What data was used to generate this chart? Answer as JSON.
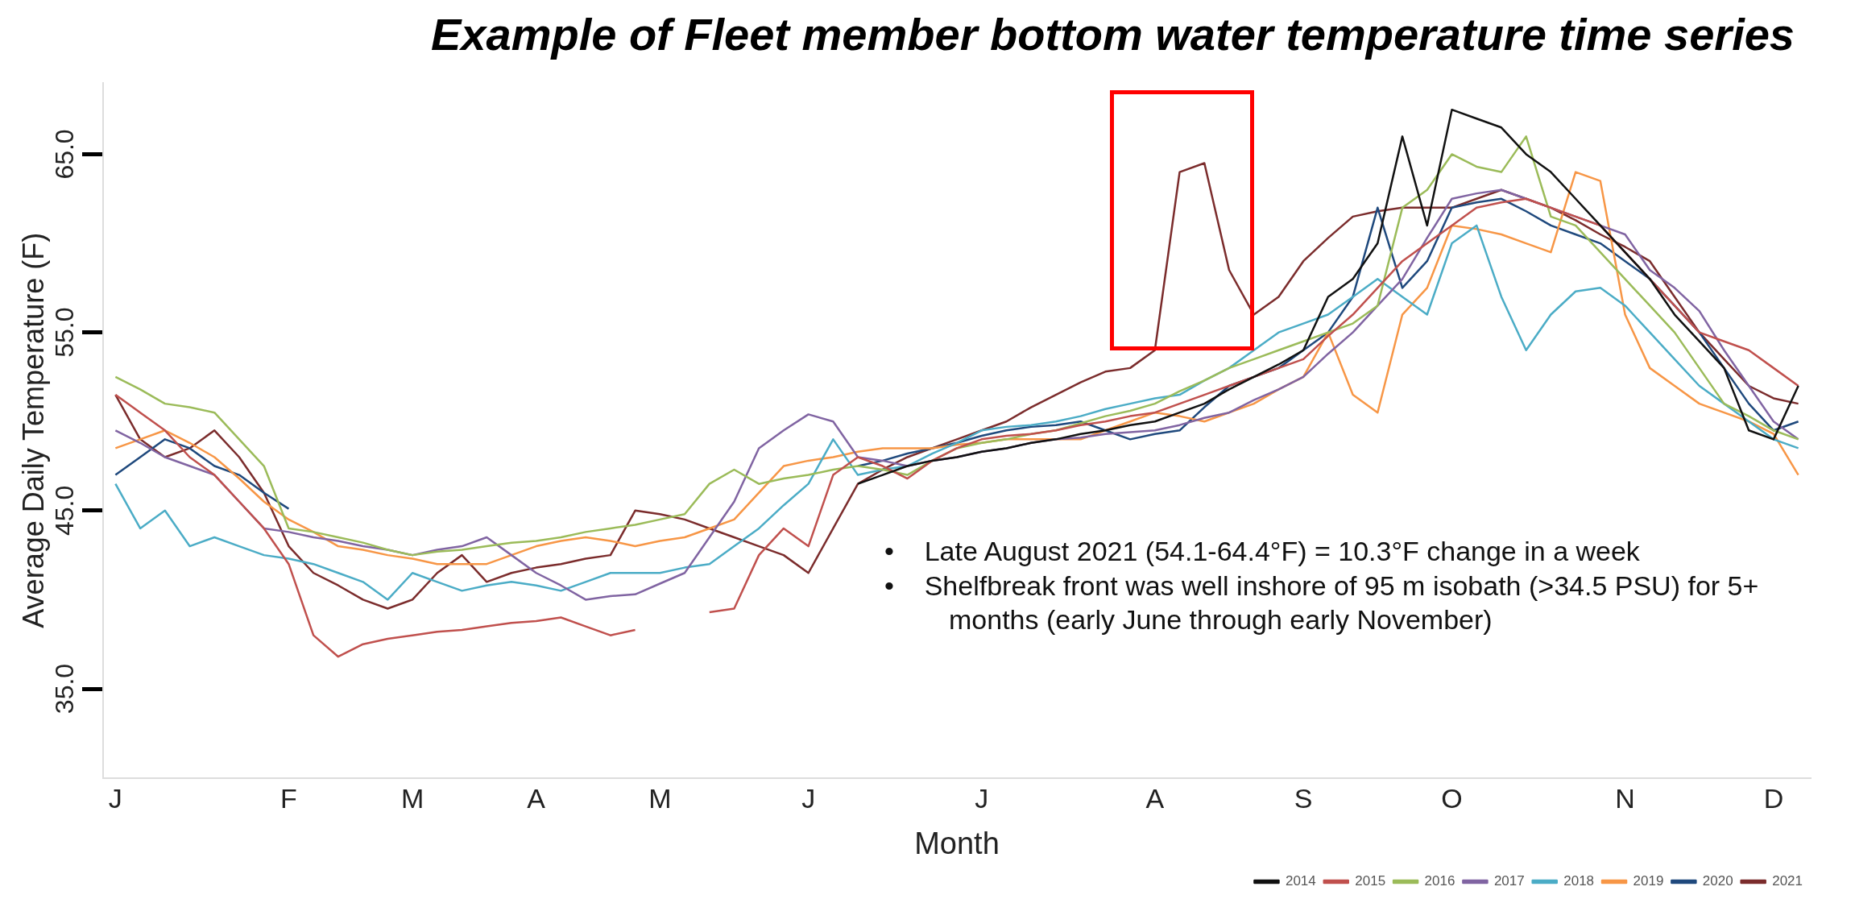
{
  "chart_data": {
    "type": "line",
    "title": "Example of Fleet member bottom water temperature time series",
    "xlabel": "Month",
    "ylabel": "Average Daily Temperature (F)",
    "categories": [
      "J",
      null,
      null,
      null,
      null,
      null,
      null,
      "F",
      null,
      null,
      null,
      null,
      "M",
      null,
      null,
      null,
      null,
      "A",
      null,
      null,
      null,
      null,
      "M",
      null,
      null,
      null,
      null,
      null,
      "J",
      null,
      null,
      null,
      null,
      null,
      null,
      "J",
      null,
      null,
      null,
      null,
      null,
      null,
      "A",
      null,
      null,
      null,
      null,
      null,
      "S",
      null,
      null,
      null,
      null,
      null,
      "O",
      null,
      null,
      null,
      null,
      null,
      null,
      "N",
      null,
      null,
      null,
      null,
      null,
      "D",
      null
    ],
    "ylim": [
      30,
      69
    ],
    "yticks": [
      {
        "value": 35,
        "label": "35.0"
      },
      {
        "value": 45,
        "label": "45.0"
      },
      {
        "value": 55,
        "label": "55.0"
      },
      {
        "value": 65,
        "label": "65.0"
      }
    ],
    "grid": false,
    "legend": "bottom right",
    "marker": "none",
    "annotations": [
      "•    Late August 2021 (54.1-64.4°F) = 10.3°F change in a week",
      "•    Shelfbreak front was well inshore of 95 m isobath (>34.5 PSU) for 5+ months (early June through early November)"
    ],
    "series": [
      {
        "name": "2014",
        "color": "#111111",
        "values": [
          null,
          null,
          null,
          null,
          null,
          null,
          null,
          null,
          null,
          null,
          null,
          null,
          null,
          null,
          null,
          null,
          null,
          null,
          null,
          null,
          null,
          null,
          null,
          null,
          null,
          null,
          null,
          null,
          null,
          null,
          46.5,
          47,
          47.5,
          47.8,
          48,
          48.3,
          48.5,
          48.8,
          49,
          49.3,
          49.5,
          49.8,
          50,
          50.5,
          51,
          51.8,
          52.5,
          53.2,
          54,
          57,
          58,
          60,
          66,
          61,
          67.5,
          67,
          66.5,
          65,
          64,
          62.5,
          61,
          59.5,
          58,
          56,
          54.5,
          53,
          49.5,
          49,
          52
        ]
      },
      {
        "name": "2015",
        "color": "#c0504d",
        "values": [
          51.5,
          50.5,
          49.5,
          48,
          47,
          45.5,
          44,
          42,
          38,
          36.8,
          37.5,
          37.8,
          38,
          38.2,
          38.3,
          38.5,
          38.7,
          38.8,
          39,
          38.5,
          38,
          38.3,
          null,
          null,
          39.3,
          39.5,
          42.5,
          44,
          43,
          47,
          48,
          47.5,
          46.8,
          47.8,
          48.5,
          49,
          49.2,
          49.3,
          49.5,
          49.8,
          50,
          50.3,
          50.5,
          51,
          51.5,
          52,
          52.5,
          53,
          53.5,
          54.8,
          56,
          57.5,
          59,
          60,
          61,
          62,
          62.3,
          62.5,
          62,
          61.5,
          61,
          59.5,
          58,
          56.5,
          55,
          54.5,
          54,
          53,
          52
        ]
      },
      {
        "name": "2016",
        "color": "#9bbb59",
        "values": [
          52.5,
          51.8,
          51,
          50.8,
          50.5,
          49,
          47.5,
          44,
          43.8,
          43.5,
          43.2,
          42.8,
          42.5,
          42.7,
          42.8,
          43,
          43.2,
          43.3,
          43.5,
          43.8,
          44,
          44.2,
          44.5,
          44.8,
          46.5,
          47.3,
          46.5,
          46.8,
          47,
          47.3,
          47.5,
          47.3,
          47,
          47.8,
          48.5,
          48.8,
          49,
          49.3,
          49.5,
          49.9,
          50.3,
          50.6,
          51,
          51.7,
          52.3,
          53,
          53.5,
          54,
          54.5,
          55,
          55.5,
          56.5,
          62,
          63,
          65,
          64.3,
          64,
          66,
          61.5,
          61,
          59.5,
          58,
          56.5,
          55,
          53,
          51,
          50.3,
          49.5,
          49
        ]
      },
      {
        "name": "2017",
        "color": "#8064a2",
        "values": [
          49.5,
          48.8,
          48,
          47.5,
          47,
          45.5,
          44,
          43.8,
          43.5,
          43.3,
          43,
          42.8,
          42.5,
          42.8,
          43,
          43.5,
          42.5,
          41.5,
          40.8,
          40,
          40.2,
          40.3,
          40.9,
          41.5,
          43.5,
          45.5,
          48.5,
          49.5,
          50.4,
          50,
          48,
          47.8,
          47.5,
          47.8,
          48,
          48.3,
          48.5,
          48.8,
          49,
          49.1,
          49.3,
          49.4,
          49.5,
          49.8,
          50.2,
          50.5,
          51.2,
          51.8,
          52.5,
          53.8,
          55,
          56.5,
          58,
          60.3,
          62.5,
          62.8,
          63,
          62.5,
          62,
          61.5,
          61,
          60.5,
          58.5,
          57.5,
          56.2,
          54,
          52,
          50,
          49
        ]
      },
      {
        "name": "2018",
        "color": "#4bacc6",
        "values": [
          46.5,
          44,
          45,
          43,
          43.5,
          43,
          42.5,
          42.3,
          42,
          41.5,
          41,
          40,
          41.5,
          41,
          40.5,
          40.8,
          41,
          40.8,
          40.5,
          41,
          41.5,
          41.5,
          41.5,
          41.8,
          42,
          43,
          44,
          45.3,
          46.5,
          49,
          47,
          47.3,
          47.5,
          48.2,
          48.8,
          49.5,
          49.7,
          49.8,
          50,
          50.3,
          50.7,
          51,
          51.3,
          51.5,
          52.3,
          53,
          54,
          55,
          55.5,
          56,
          57,
          58,
          57,
          56,
          60,
          61,
          57,
          54,
          56,
          57.3,
          57.5,
          56.5,
          55,
          53.5,
          52,
          51,
          50,
          49,
          48.5
        ]
      },
      {
        "name": "2019",
        "color": "#f79646",
        "values": [
          48.5,
          49,
          49.5,
          48.8,
          48,
          46.8,
          45.5,
          44.5,
          43.8,
          43,
          42.8,
          42.5,
          42.3,
          42,
          42,
          42,
          42.5,
          43,
          43.3,
          43.5,
          43.3,
          43,
          43.3,
          43.5,
          44,
          44.5,
          46,
          47.5,
          47.8,
          48,
          48.3,
          48.5,
          48.5,
          48.5,
          48.7,
          48.8,
          49,
          49,
          49,
          49,
          49.5,
          50,
          50.5,
          50.3,
          50,
          50.5,
          51,
          51.8,
          52.5,
          55,
          51.5,
          50.5,
          56,
          57.5,
          61,
          60.8,
          60.5,
          60,
          59.5,
          64,
          63.5,
          56,
          53,
          52,
          51,
          50.5,
          50,
          49.3,
          47
        ]
      },
      {
        "name": "2020",
        "color": "#1f497d",
        "values": [
          47,
          48,
          49,
          48.5,
          47.5,
          47,
          46,
          45.1,
          null,
          null,
          null,
          null,
          null,
          null,
          null,
          null,
          null,
          null,
          null,
          null,
          null,
          null,
          null,
          null,
          null,
          null,
          null,
          null,
          null,
          null,
          47.5,
          47.8,
          48.2,
          48.5,
          48.8,
          49.2,
          49.5,
          49.7,
          49.8,
          50,
          49.5,
          49,
          49.3,
          49.5,
          50.8,
          52,
          52.5,
          53,
          54,
          55,
          57,
          62,
          57.5,
          59,
          62,
          62.3,
          62.5,
          61.8,
          61,
          60.5,
          60,
          59,
          58,
          56.5,
          55,
          53,
          51,
          49.5,
          50
        ]
      },
      {
        "name": "2021",
        "color": "#7b2c2c",
        "values": [
          51.5,
          49,
          48,
          48.5,
          49.5,
          48,
          46,
          43,
          41.5,
          40.8,
          40,
          39.5,
          40,
          41.5,
          42.5,
          41,
          41.5,
          41.8,
          42,
          42.3,
          42.5,
          45,
          44.8,
          44.5,
          44,
          43.5,
          43,
          42.5,
          41.5,
          44,
          46.5,
          47.3,
          48,
          48.5,
          49,
          49.5,
          50,
          50.8,
          51.5,
          52.2,
          52.8,
          53,
          54,
          64,
          64.5,
          58.5,
          56,
          57,
          59,
          60.3,
          61.5,
          61.8,
          62,
          62,
          62,
          62.5,
          63,
          62.5,
          62,
          61.3,
          60.5,
          59.8,
          59,
          57,
          55,
          53.5,
          52,
          51.3,
          51
        ]
      }
    ]
  }
}
